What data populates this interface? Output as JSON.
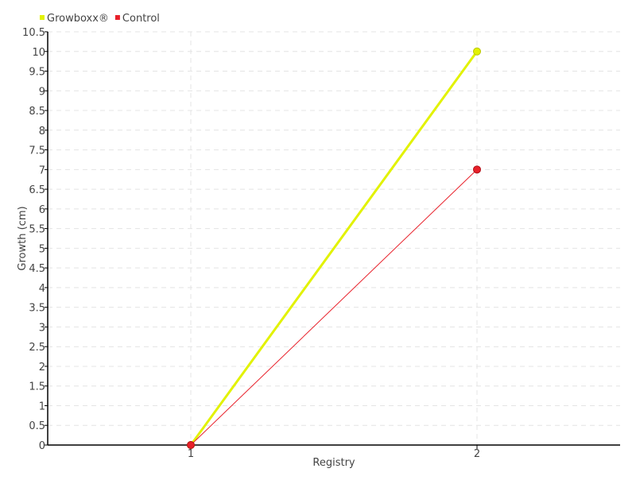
{
  "chart_data": {
    "type": "line",
    "title": "",
    "xlabel": "Registry",
    "ylabel": "Growth (cm)",
    "x": [
      1,
      2
    ],
    "xlim": [
      0.5,
      2.5
    ],
    "ylim": [
      0,
      10.5
    ],
    "xticks": [
      "1",
      "2"
    ],
    "yticks": [
      "0",
      "0.5",
      "1",
      "1.5",
      "2",
      "2.5",
      "3",
      "3.5",
      "4",
      "4.5",
      "5",
      "5.5",
      "6",
      "6.5",
      "7",
      "7.5",
      "8",
      "8.5",
      "9",
      "9.5",
      "10",
      "10.5"
    ],
    "grid": true,
    "legend_placement": "top-left",
    "series": [
      {
        "name": "Growboxx®",
        "values": [
          0,
          10
        ],
        "color": "#e2f200"
      },
      {
        "name": "Control",
        "values": [
          0,
          7
        ],
        "color": "#e8202a"
      }
    ]
  }
}
